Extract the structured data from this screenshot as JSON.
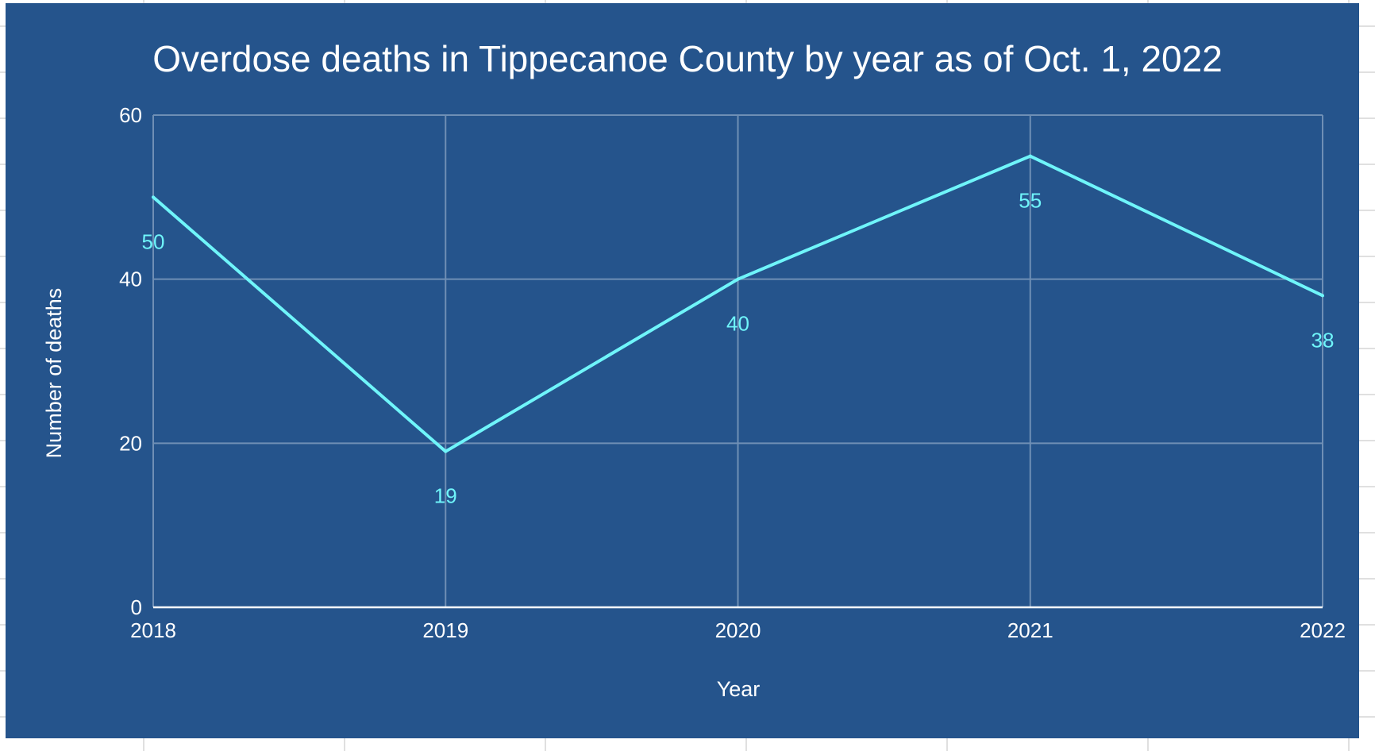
{
  "chart_data": {
    "type": "line",
    "title": "Overdose deaths in Tippecanoe County by year as of Oct. 1, 2022",
    "xlabel": "Year",
    "ylabel": "Number of deaths",
    "categories": [
      "2018",
      "2019",
      "2020",
      "2021",
      "2022"
    ],
    "series": [
      {
        "values": [
          50,
          19,
          40,
          55,
          38
        ]
      }
    ],
    "data_labels": [
      "50",
      "19",
      "40",
      "55",
      "38"
    ],
    "yticks": [
      0,
      20,
      40,
      60
    ],
    "ylim": [
      0,
      60
    ],
    "grid": true,
    "legend": "none",
    "colors": {
      "background": "#25548c",
      "line": "#6ff5fa",
      "text": "#ffffff",
      "grid": "#6f8fb5"
    }
  }
}
